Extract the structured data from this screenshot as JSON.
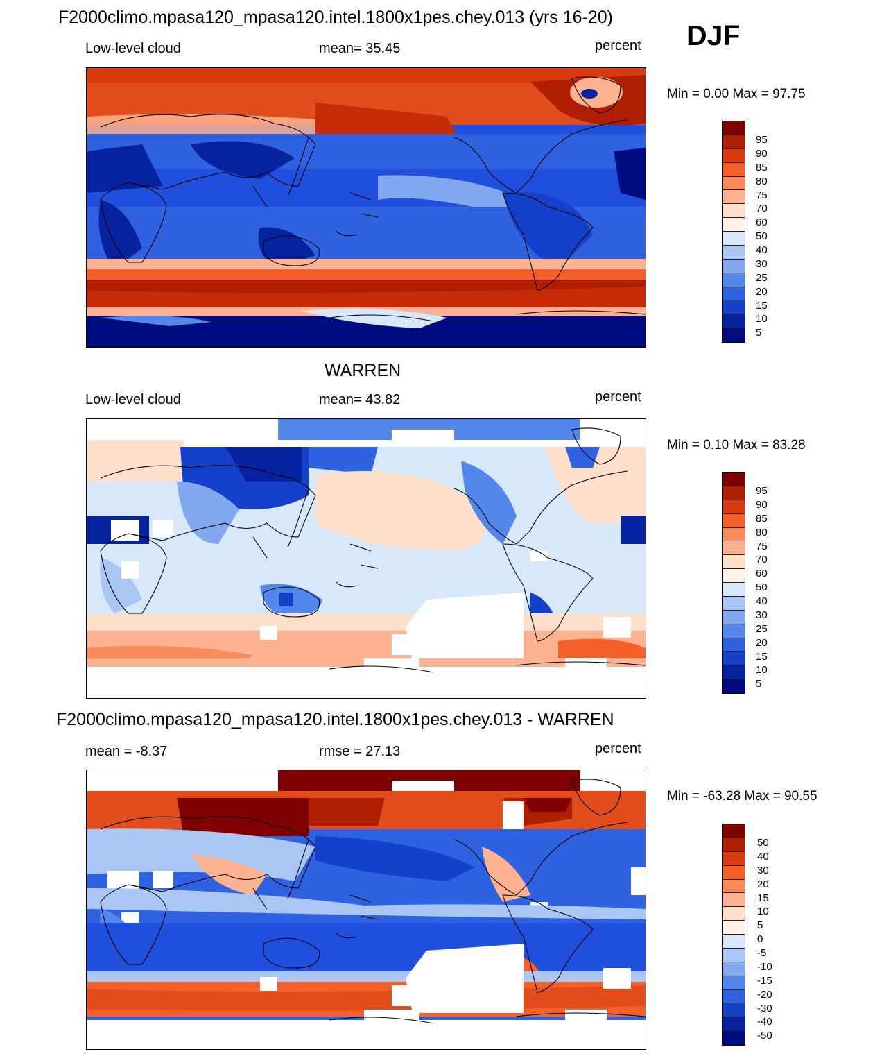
{
  "header": {
    "title": "F2000climo.mpasa120_mpasa120.intel.1800x1pes.chey.013 (yrs 16-20)",
    "season": "DJF"
  },
  "panels": [
    {
      "id": "model",
      "heading": "",
      "left_label": "Low-level cloud",
      "center_label": "mean=  35.45",
      "right_label": "percent",
      "minmax_label": "Min =    0.00 Max =  97.75",
      "colorbar_levels": [
        "95",
        "90",
        "85",
        "80",
        "75",
        "70",
        "60",
        "50",
        "40",
        "30",
        "25",
        "20",
        "15",
        "10",
        "5"
      ],
      "colors": [
        "#7f0000",
        "#b01e00",
        "#d93a0e",
        "#f45f2a",
        "#f98b5d",
        "#fdb391",
        "#fddfcc",
        "#fff2e6",
        "#d7e8fb",
        "#a9c6f5",
        "#82a8f0",
        "#5587ea",
        "#2e62e0",
        "#1540c9",
        "#06229e",
        "#000b7f"
      ]
    },
    {
      "id": "obs",
      "heading": "WARREN",
      "left_label": "Low-level cloud",
      "center_label": "mean=  43.82",
      "right_label": "percent",
      "minmax_label": "Min =    0.10 Max =  83.28",
      "colorbar_levels": [
        "95",
        "90",
        "85",
        "80",
        "75",
        "70",
        "60",
        "50",
        "40",
        "30",
        "25",
        "20",
        "15",
        "10",
        "5"
      ],
      "colors": [
        "#7f0000",
        "#b01e00",
        "#d93a0e",
        "#f45f2a",
        "#f98b5d",
        "#fdb391",
        "#fddfcc",
        "#fff2e6",
        "#d7e8fb",
        "#a9c6f5",
        "#82a8f0",
        "#5587ea",
        "#2e62e0",
        "#1540c9",
        "#06229e",
        "#000b7f"
      ]
    },
    {
      "id": "diff",
      "heading": "F2000climo.mpasa120_mpasa120.intel.1800x1pes.chey.013 - WARREN",
      "left_label": "mean =  -8.37",
      "center_label": "rmse =  27.13",
      "right_label": "percent",
      "minmax_label": "Min = -63.28 Max =  90.55",
      "colorbar_levels": [
        "50",
        "40",
        "30",
        "20",
        "15",
        "10",
        "5",
        "0",
        "-5",
        "-10",
        "-15",
        "-20",
        "-30",
        "-40",
        "-50"
      ],
      "colors": [
        "#7f0000",
        "#b01e00",
        "#d93a0e",
        "#f45f2a",
        "#f98b5d",
        "#fdb391",
        "#fddfcc",
        "#fff2e6",
        "#d7e8fb",
        "#a9c6f5",
        "#82a8f0",
        "#5587ea",
        "#2e62e0",
        "#1540c9",
        "#06229e",
        "#000b7f"
      ]
    }
  ],
  "chart_data": [
    {
      "type": "heatmap",
      "title": "F2000climo.mpasa120_mpasa120.intel.1800x1pes.chey.013 (yrs 16-20)",
      "variable": "Low-level cloud",
      "units": "percent",
      "season": "DJF",
      "mean": 35.45,
      "min": 0.0,
      "max": 97.75,
      "contour_levels": [
        5,
        10,
        15,
        20,
        25,
        30,
        40,
        50,
        60,
        70,
        75,
        80,
        85,
        90,
        95
      ]
    },
    {
      "type": "heatmap",
      "title": "WARREN",
      "variable": "Low-level cloud",
      "units": "percent",
      "mean": 43.82,
      "min": 0.1,
      "max": 83.28,
      "contour_levels": [
        5,
        10,
        15,
        20,
        25,
        30,
        40,
        50,
        60,
        70,
        75,
        80,
        85,
        90,
        95
      ]
    },
    {
      "type": "heatmap",
      "title": "F2000climo.mpasa120_mpasa120.intel.1800x1pes.chey.013 - WARREN",
      "units": "percent",
      "mean": -8.37,
      "rmse": 27.13,
      "min": -63.28,
      "max": 90.55,
      "contour_levels": [
        -50,
        -40,
        -30,
        -20,
        -15,
        -10,
        -5,
        0,
        5,
        10,
        15,
        20,
        30,
        40,
        50
      ]
    }
  ]
}
